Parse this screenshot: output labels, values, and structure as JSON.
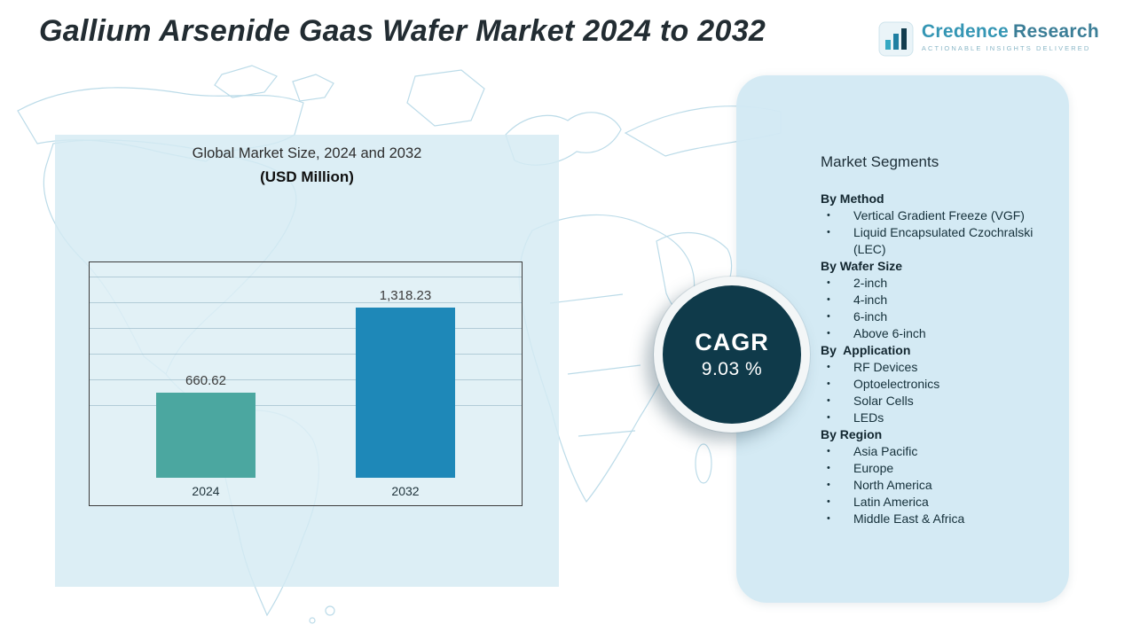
{
  "header": {
    "title": "Gallium Arsenide Gaas Wafer Market 2024 to 2032",
    "brand": {
      "name_primary": "Credence",
      "name_secondary": "Research",
      "tagline": "Actionable Insights Delivered"
    }
  },
  "chart_panel": {
    "title": "Global Market Size, 2024 and 2032",
    "subtitle": "(USD Million)"
  },
  "chart_data": {
    "type": "bar",
    "title": "Global Market Size, 2024 and 2032",
    "ylabel": "USD Million",
    "categories": [
      "2024",
      "2032"
    ],
    "values": [
      660.62,
      1318.23
    ],
    "value_labels": [
      "660.62",
      "1,318.23"
    ],
    "bar_colors": [
      "#4ba7a0",
      "#1e88b8"
    ],
    "ylim": [
      0,
      1500
    ],
    "grid": true,
    "legend": false
  },
  "cagr": {
    "label": "CAGR",
    "value": "9.03 %"
  },
  "segments": {
    "title": "Market Segments",
    "groups": [
      {
        "heading": "By Method",
        "items": [
          "Vertical Gradient Freeze (VGF)",
          "Liquid Encapsulated Czochralski (LEC)"
        ]
      },
      {
        "heading": "By Wafer Size",
        "items": [
          "2-inch",
          "4-inch",
          "6-inch",
          "Above 6-inch"
        ]
      },
      {
        "heading": "By  Application",
        "items": [
          "RF Devices",
          "Optoelectronics",
          "Solar Cells",
          "LEDs"
        ]
      },
      {
        "heading": "By Region",
        "items": [
          "Asia Pacific",
          "Europe",
          "North America",
          "Latin America",
          "Middle East & Africa"
        ]
      }
    ]
  }
}
